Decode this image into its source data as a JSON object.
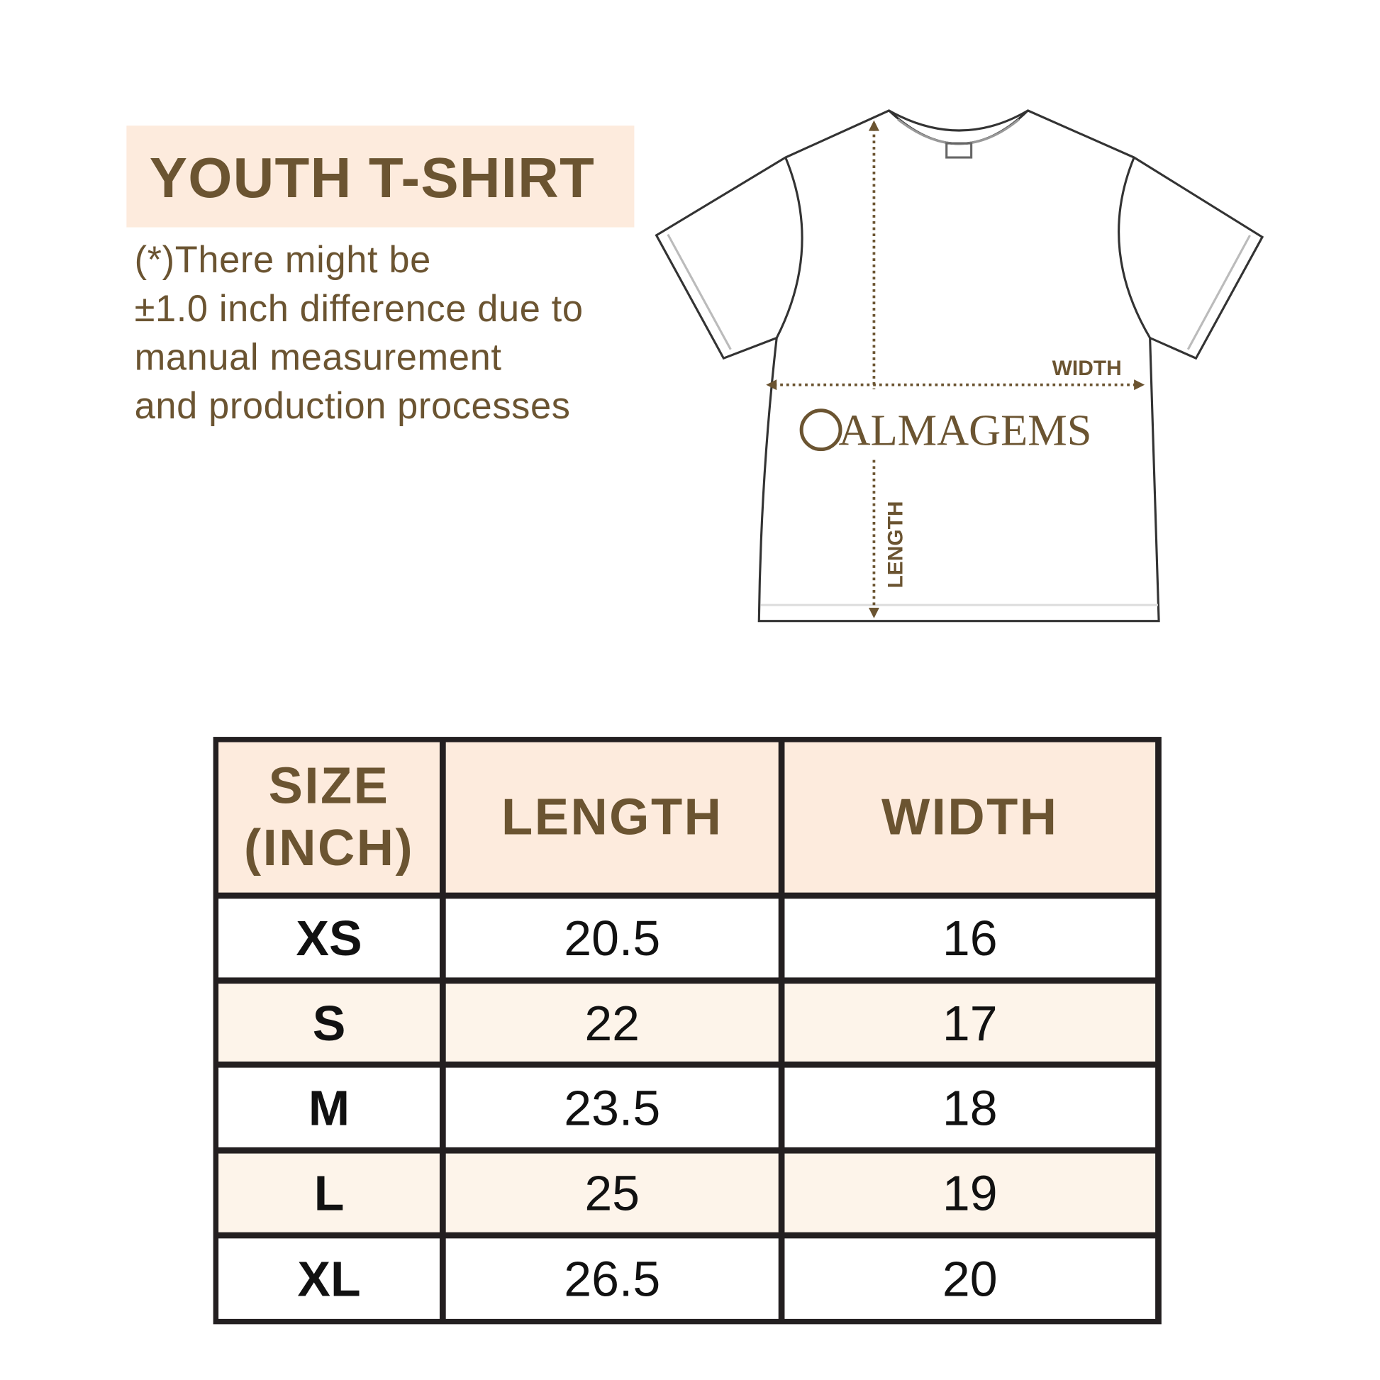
{
  "title": "YOUTH T-SHIRT",
  "note_lines": [
    "(*)There might be",
    "±1.0 inch difference due to",
    "manual measurement",
    "and production processes"
  ],
  "diagram": {
    "width_label": "WIDTH",
    "length_label": "LENGTH",
    "brand": "ALMAGEMS"
  },
  "table": {
    "headers": [
      "SIZE (INCH)",
      "LENGTH",
      "WIDTH"
    ],
    "header_lines": [
      "SIZE",
      "(INCH)"
    ],
    "rows": [
      {
        "size": "XS",
        "length": "20.5",
        "width": "16"
      },
      {
        "size": "S",
        "length": "22",
        "width": "17"
      },
      {
        "size": "M",
        "length": "23.5",
        "width": "18"
      },
      {
        "size": "L",
        "length": "25",
        "width": "19"
      },
      {
        "size": "XL",
        "length": "26.5",
        "width": "20"
      }
    ]
  },
  "colors": {
    "brand_brown": "#6b5431",
    "header_fill": "#fdebdd",
    "alt_row_fill": "#fdf4ea",
    "border": "#231f20"
  }
}
